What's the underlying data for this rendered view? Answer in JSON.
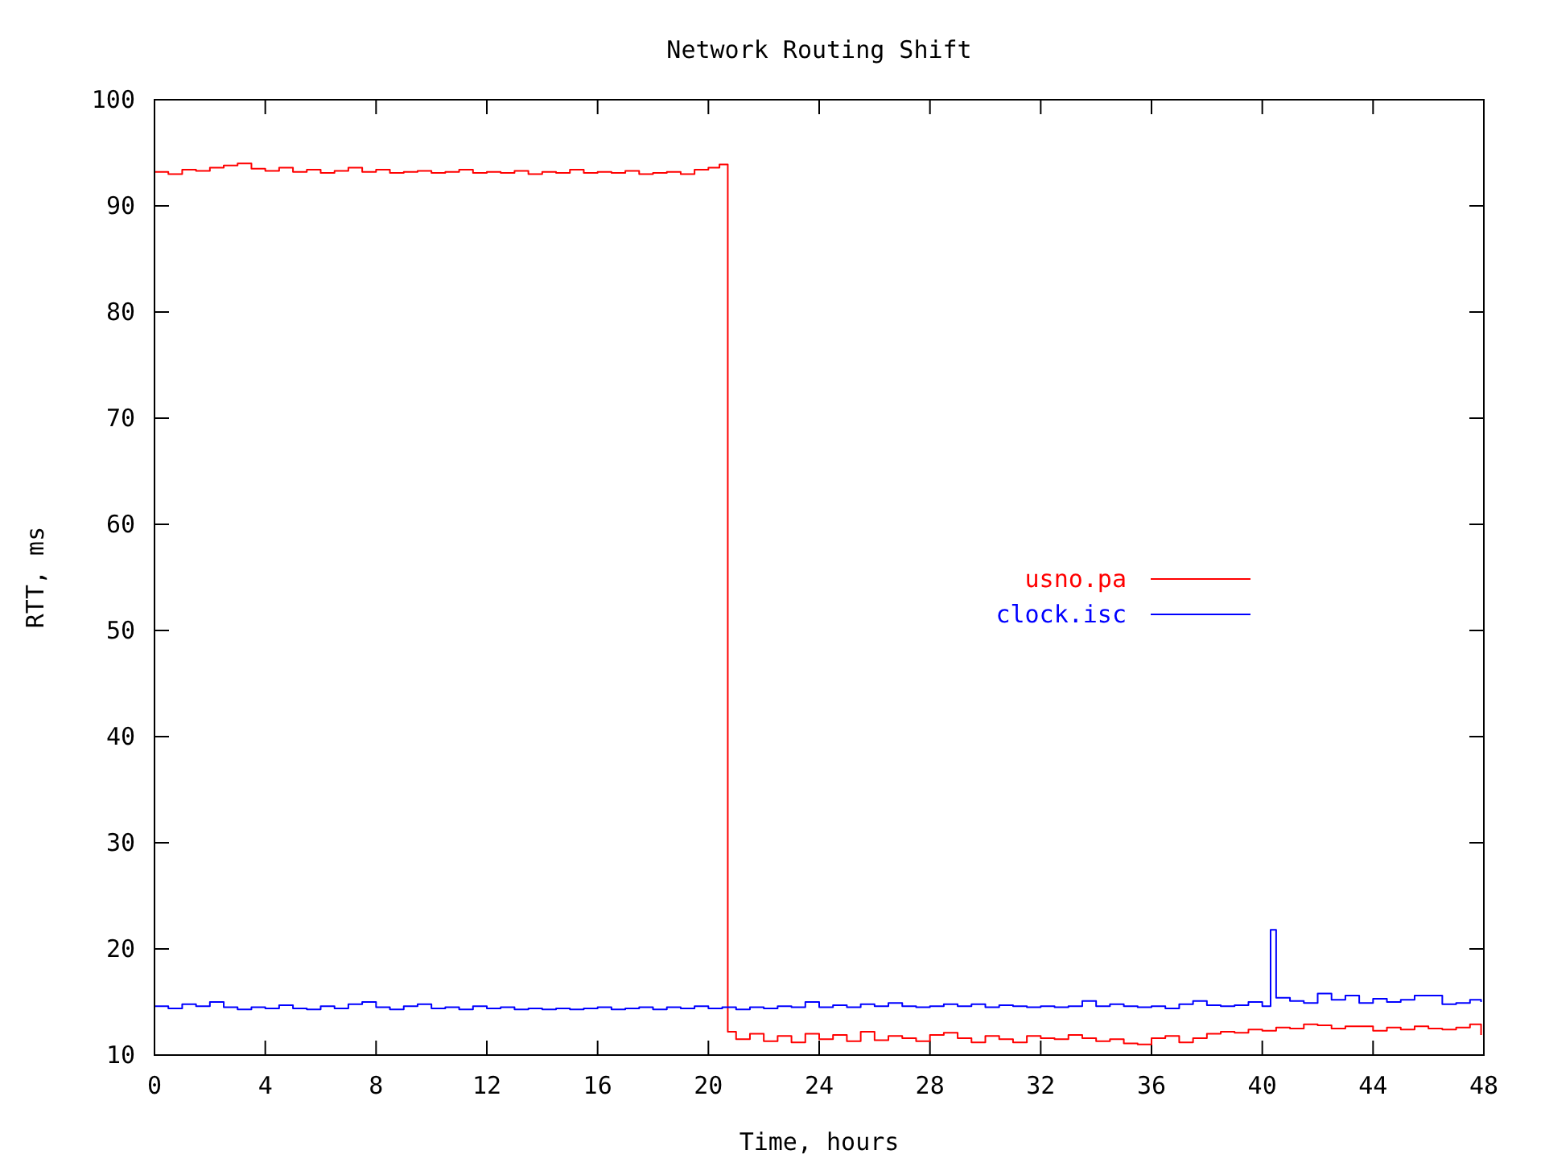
{
  "chart_data": {
    "type": "step",
    "title": "Network Routing Shift",
    "xlabel": "Time, hours",
    "ylabel": "RTT, ms",
    "xlim": [
      0,
      48
    ],
    "xticks": [
      0,
      4,
      8,
      12,
      16,
      20,
      24,
      28,
      32,
      36,
      40,
      44,
      48
    ],
    "ylim": [
      10,
      100
    ],
    "yticks": [
      10,
      20,
      30,
      40,
      50,
      60,
      70,
      80,
      90,
      100
    ],
    "grid": false,
    "legend": "right",
    "series": [
      {
        "name": "usno.pa",
        "color": "#ff0000",
        "x": [
          0,
          0.5,
          1,
          1.5,
          2,
          2.5,
          3,
          3.5,
          4,
          4.5,
          5,
          5.5,
          6,
          6.5,
          7,
          7.5,
          8,
          8.5,
          9,
          9.5,
          10,
          10.5,
          11,
          11.5,
          12,
          12.5,
          13,
          13.5,
          14,
          14.5,
          15,
          15.5,
          16,
          16.5,
          17,
          17.5,
          18,
          18.5,
          19,
          19.5,
          20,
          20.4,
          20.7,
          21,
          21.5,
          22,
          22.5,
          23,
          23.5,
          24,
          24.5,
          25,
          25.5,
          26,
          26.5,
          27,
          27.5,
          28,
          28.5,
          29,
          29.5,
          30,
          30.5,
          31,
          31.5,
          32,
          32.5,
          33,
          33.5,
          34,
          34.5,
          35,
          35.5,
          36,
          36.5,
          37,
          37.5,
          38,
          38.5,
          39,
          39.5,
          40,
          40.5,
          41,
          41.5,
          42,
          42.5,
          43,
          43.5,
          44,
          44.5,
          45,
          45.5,
          46,
          46.5,
          47,
          47.5,
          47.9
        ],
        "values": [
          93.2,
          93.0,
          93.4,
          93.3,
          93.6,
          93.8,
          94.0,
          93.5,
          93.3,
          93.6,
          93.2,
          93.4,
          93.1,
          93.3,
          93.6,
          93.2,
          93.4,
          93.1,
          93.2,
          93.3,
          93.1,
          93.2,
          93.4,
          93.1,
          93.2,
          93.1,
          93.3,
          93.0,
          93.2,
          93.1,
          93.4,
          93.1,
          93.2,
          93.1,
          93.3,
          93.0,
          93.1,
          93.2,
          93.0,
          93.4,
          93.6,
          93.9,
          12.2,
          11.5,
          12.0,
          11.3,
          11.8,
          11.2,
          12.0,
          11.5,
          11.9,
          11.3,
          12.2,
          11.4,
          11.8,
          11.6,
          11.3,
          11.9,
          12.1,
          11.6,
          11.2,
          11.8,
          11.5,
          11.2,
          11.8,
          11.6,
          11.5,
          11.9,
          11.6,
          11.3,
          11.5,
          11.1,
          11.0,
          11.6,
          11.8,
          11.2,
          11.6,
          12.0,
          12.2,
          12.1,
          12.4,
          12.3,
          12.6,
          12.5,
          12.9,
          12.8,
          12.5,
          12.7,
          12.7,
          12.3,
          12.6,
          12.4,
          12.7,
          12.5,
          12.4,
          12.6,
          12.9,
          11.9
        ]
      },
      {
        "name": "clock.isc",
        "color": "#0000ff",
        "x": [
          0,
          0.5,
          1,
          1.5,
          2,
          2.5,
          3,
          3.5,
          4,
          4.5,
          5,
          5.5,
          6,
          6.5,
          7,
          7.5,
          8,
          8.5,
          9,
          9.5,
          10,
          10.5,
          11,
          11.5,
          12,
          12.5,
          13,
          13.5,
          14,
          14.5,
          15,
          15.5,
          16,
          16.5,
          17,
          17.5,
          18,
          18.5,
          19,
          19.5,
          20,
          20.5,
          21,
          21.5,
          22,
          22.5,
          23,
          23.5,
          24,
          24.5,
          25,
          25.5,
          26,
          26.5,
          27,
          27.5,
          28,
          28.5,
          29,
          29.5,
          30,
          30.5,
          31,
          31.5,
          32,
          32.5,
          33,
          33.5,
          34,
          34.5,
          35,
          35.5,
          36,
          36.5,
          37,
          37.5,
          38,
          38.5,
          39,
          39.5,
          40,
          40.3,
          40.5,
          41,
          41.5,
          42,
          42.5,
          43,
          43.5,
          44,
          44.5,
          45,
          45.5,
          46,
          46.5,
          47,
          47.5,
          47.9
        ],
        "values": [
          14.6,
          14.4,
          14.8,
          14.6,
          15.0,
          14.5,
          14.3,
          14.5,
          14.4,
          14.7,
          14.4,
          14.3,
          14.6,
          14.4,
          14.8,
          15.0,
          14.5,
          14.3,
          14.6,
          14.8,
          14.4,
          14.5,
          14.3,
          14.6,
          14.4,
          14.5,
          14.3,
          14.4,
          14.3,
          14.4,
          14.3,
          14.4,
          14.5,
          14.3,
          14.4,
          14.5,
          14.3,
          14.5,
          14.4,
          14.6,
          14.4,
          14.5,
          14.3,
          14.5,
          14.4,
          14.6,
          14.5,
          15.0,
          14.5,
          14.7,
          14.5,
          14.8,
          14.6,
          14.9,
          14.6,
          14.5,
          14.6,
          14.8,
          14.6,
          14.8,
          14.5,
          14.7,
          14.6,
          14.5,
          14.6,
          14.5,
          14.6,
          15.1,
          14.6,
          14.8,
          14.6,
          14.5,
          14.6,
          14.4,
          14.8,
          15.1,
          14.7,
          14.6,
          14.7,
          15.0,
          14.6,
          21.8,
          15.4,
          15.1,
          14.9,
          15.8,
          15.2,
          15.6,
          14.9,
          15.3,
          15.0,
          15.2,
          15.6,
          15.6,
          14.8,
          14.9,
          15.2,
          15.0
        ]
      }
    ]
  }
}
